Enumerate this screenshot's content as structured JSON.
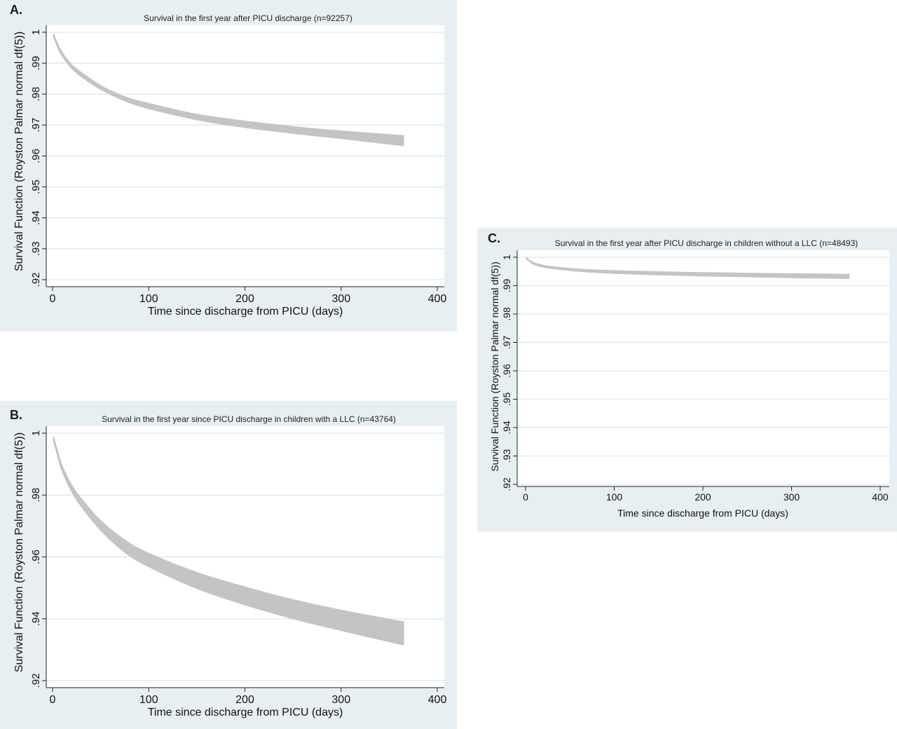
{
  "chart_data": [
    {
      "panel": "A.",
      "type": "area",
      "title": "Survival in the first year after PICU discharge (n=92257)",
      "xlabel": "Time since discharge from PICU (days)",
      "ylabel": "Survival Function (Royston Palmar normal df(5))",
      "xlim": [
        0,
        400
      ],
      "ylim": [
        0.92,
        1.0
      ],
      "xticks": [
        "0",
        "100",
        "200",
        "300",
        "400"
      ],
      "yticks": [
        {
          "value": 0.92,
          "label": ".92"
        },
        {
          "value": 0.93,
          "label": ".93"
        },
        {
          "value": 0.94,
          "label": ".94"
        },
        {
          "value": 0.95,
          "label": ".95"
        },
        {
          "value": 0.96,
          "label": ".96"
        },
        {
          "value": 0.97,
          "label": ".97"
        },
        {
          "value": 0.98,
          "label": ".98"
        },
        {
          "value": 0.99,
          "label": ".99"
        },
        {
          "value": 1.0,
          "label": "1"
        }
      ],
      "grid": true,
      "band_color": "#c4c4c4",
      "x": [
        1,
        5,
        10,
        20,
        30,
        50,
        75,
        100,
        150,
        200,
        250,
        300,
        365
      ],
      "upper": [
        0.9995,
        0.9965,
        0.9935,
        0.9895,
        0.987,
        0.9828,
        0.9792,
        0.977,
        0.9735,
        0.9713,
        0.9695,
        0.9681,
        0.9666
      ],
      "lower": [
        0.9985,
        0.9953,
        0.9923,
        0.9883,
        0.9856,
        0.9815,
        0.9778,
        0.9753,
        0.9717,
        0.9692,
        0.9673,
        0.9656,
        0.9633
      ]
    },
    {
      "panel": "B.",
      "type": "area",
      "title": "Survival in the first year since PICU discharge in children with a LLC (n=43764)",
      "xlabel": "Time since discharge from PICU (days)",
      "ylabel": "Survival Function (Royston Palmar normal df(5))",
      "xlim": [
        0,
        400
      ],
      "ylim": [
        0.92,
        1.0
      ],
      "xticks": [
        "0",
        "100",
        "200",
        "300",
        "400"
      ],
      "yticks": [
        {
          "value": 0.92,
          "label": ".92"
        },
        {
          "value": 0.94,
          "label": ".94"
        },
        {
          "value": 0.96,
          "label": ".96"
        },
        {
          "value": 0.98,
          "label": ".98"
        },
        {
          "value": 1.0,
          "label": "1"
        }
      ],
      "grid": true,
      "band_color": "#c4c4c4",
      "x": [
        1,
        5,
        10,
        20,
        30,
        50,
        75,
        100,
        150,
        200,
        250,
        300,
        365
      ],
      "upper": [
        0.999,
        0.9945,
        0.9895,
        0.9832,
        0.9788,
        0.9718,
        0.9655,
        0.9612,
        0.955,
        0.9503,
        0.9462,
        0.9428,
        0.939
      ],
      "lower": [
        0.9975,
        0.9928,
        0.9876,
        0.981,
        0.9762,
        0.9686,
        0.9615,
        0.9568,
        0.9498,
        0.9445,
        0.94,
        0.9362,
        0.9315
      ]
    },
    {
      "panel": "C.",
      "type": "area",
      "title": "Survival in the first year after PICU discharge in children without a LLC (n=48493)",
      "xlabel": "Time since discharge from PICU (days)",
      "ylabel": "Survival Function (Royston Palmar normal df(5))",
      "xlim": [
        0,
        400
      ],
      "ylim": [
        0.92,
        1.0
      ],
      "xticks": [
        "0",
        "100",
        "200",
        "300",
        "400"
      ],
      "yticks": [
        {
          "value": 0.92,
          "label": ".92"
        },
        {
          "value": 0.93,
          "label": ".93"
        },
        {
          "value": 0.94,
          "label": ".94"
        },
        {
          "value": 0.95,
          "label": ".95"
        },
        {
          "value": 0.96,
          "label": ".96"
        },
        {
          "value": 0.97,
          "label": ".97"
        },
        {
          "value": 0.98,
          "label": ".98"
        },
        {
          "value": 0.99,
          "label": ".99"
        },
        {
          "value": 1.0,
          "label": "1"
        }
      ],
      "grid": true,
      "band_color": "#c4c4c4",
      "x": [
        1,
        5,
        10,
        20,
        30,
        50,
        75,
        100,
        150,
        200,
        250,
        300,
        365
      ],
      "upper": [
        0.9999,
        0.9988,
        0.998,
        0.9972,
        0.9967,
        0.9961,
        0.9956,
        0.9953,
        0.9949,
        0.9946,
        0.9944,
        0.9942,
        0.994
      ],
      "lower": [
        0.9993,
        0.9983,
        0.9974,
        0.9965,
        0.996,
        0.9953,
        0.9947,
        0.9943,
        0.9938,
        0.9934,
        0.9931,
        0.9928,
        0.9925
      ]
    }
  ]
}
